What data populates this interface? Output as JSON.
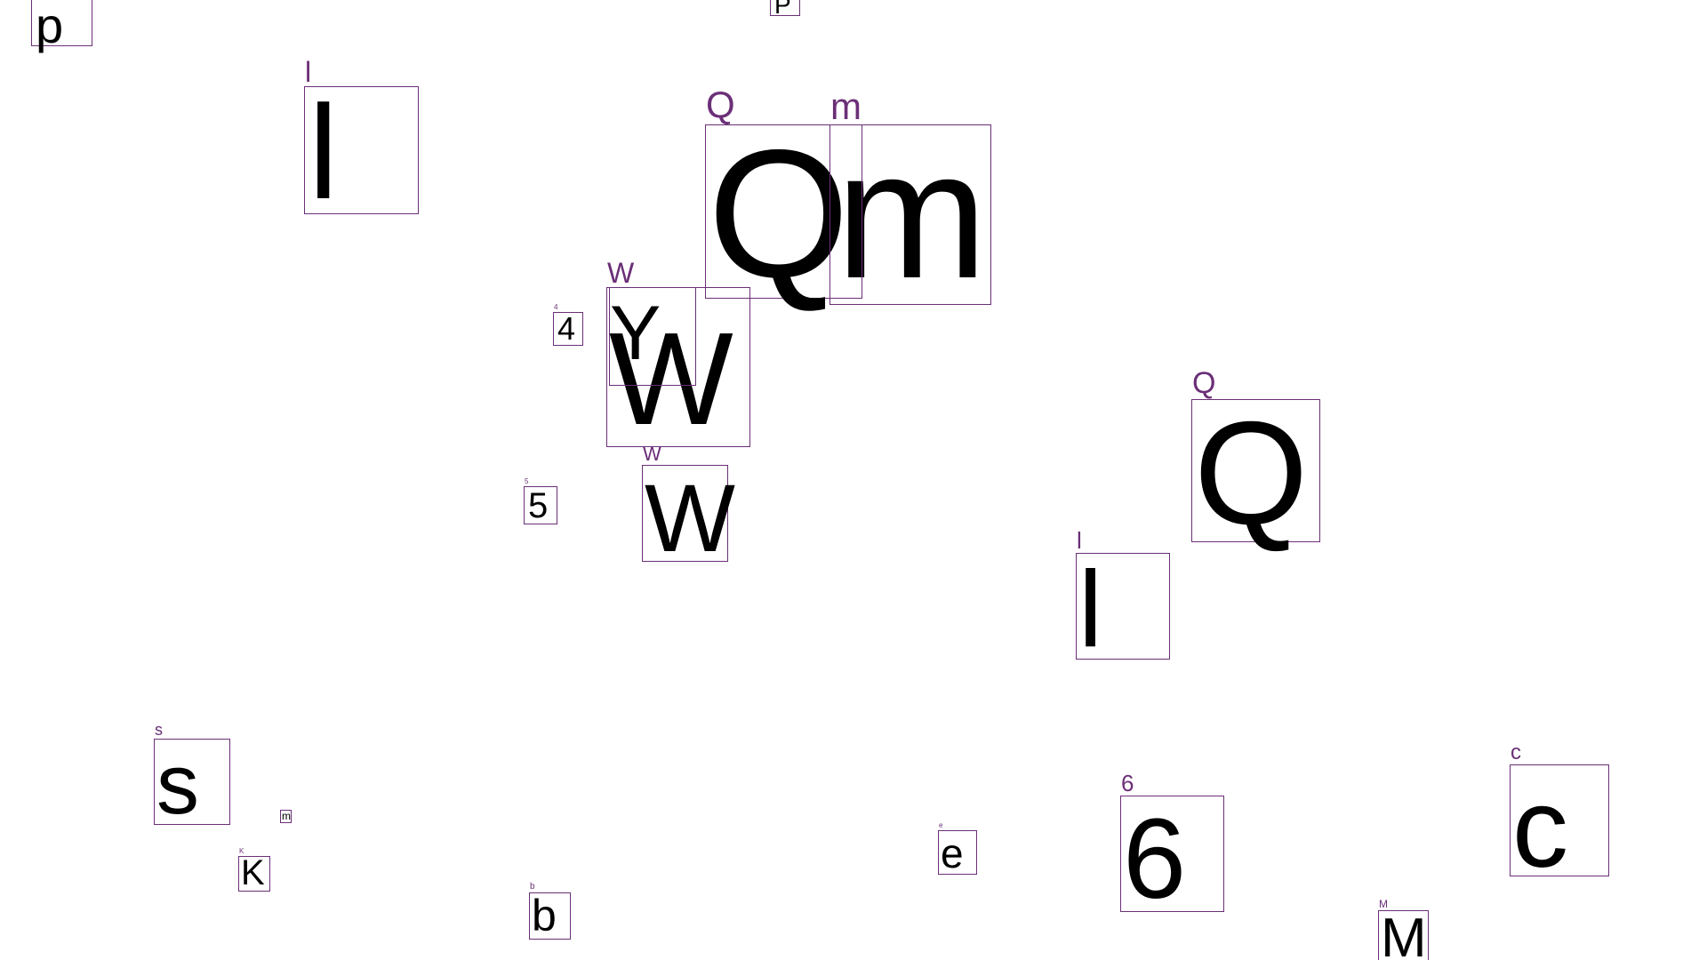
{
  "colors": {
    "background": "#ffffff",
    "box_border": "#6b2f77",
    "label_text": "#6b2f77",
    "glyph_text": "#000000"
  },
  "glyph_boxes": [
    {
      "id": "p",
      "label": "",
      "glyph": "p"
    },
    {
      "id": "P-top",
      "label": "",
      "glyph": "P"
    },
    {
      "id": "l-top",
      "label": "l",
      "glyph": "l"
    },
    {
      "id": "Q-large",
      "label": "Q",
      "glyph": "Q"
    },
    {
      "id": "m-large",
      "label": "m",
      "glyph": "m"
    },
    {
      "id": "W-large",
      "label": "W",
      "glyph": "W"
    },
    {
      "id": "Y-overlap",
      "label": "",
      "glyph": "Y"
    },
    {
      "id": "four",
      "label": "4",
      "glyph": "4"
    },
    {
      "id": "five",
      "label": "5",
      "glyph": "5"
    },
    {
      "id": "W-small",
      "label": "W",
      "glyph": "W"
    },
    {
      "id": "Q-right",
      "label": "Q",
      "glyph": "Q"
    },
    {
      "id": "l-right",
      "label": "l",
      "glyph": "l"
    },
    {
      "id": "s",
      "label": "s",
      "glyph": "s"
    },
    {
      "id": "m-tiny",
      "label": "",
      "glyph": "m"
    },
    {
      "id": "K",
      "label": "K",
      "glyph": "K"
    },
    {
      "id": "b",
      "label": "b",
      "glyph": "b"
    },
    {
      "id": "e",
      "label": "e",
      "glyph": "e"
    },
    {
      "id": "six",
      "label": "6",
      "glyph": "6"
    },
    {
      "id": "c",
      "label": "c",
      "glyph": "c"
    },
    {
      "id": "M",
      "label": "M",
      "glyph": "M"
    }
  ]
}
